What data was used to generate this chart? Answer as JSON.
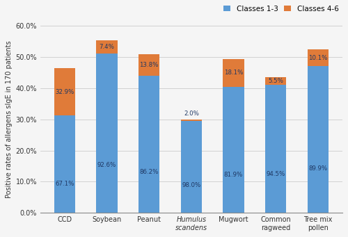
{
  "categories": [
    "CCD",
    "Soybean",
    "Peanut",
    "Humulus\nscandens",
    "Mugwort",
    "Common\nragweed",
    "Tree mix\npollen"
  ],
  "classes_1_3_pct": [
    31.2,
    51.2,
    43.9,
    29.4,
    40.4,
    41.1,
    47.1
  ],
  "classes_4_6_pct": [
    15.3,
    4.1,
    7.1,
    0.6,
    9.0,
    2.4,
    5.3
  ],
  "labels_1_3": [
    "67.1%",
    "92.6%",
    "86.2%",
    "98.0%",
    "81.9%",
    "94.5%",
    "89.9%"
  ],
  "labels_4_6": [
    "32.9%",
    "7.4%",
    "13.8%",
    "2.0%",
    "18.1%",
    "5.5%",
    "10.1%"
  ],
  "color_1_3": "#5B9BD5",
  "color_4_6": "#E07B39",
  "ylabel": "Positive rates of allergens sIgE in 170 patients",
  "ylim_max": 60.0,
  "ytick_vals": [
    0,
    10,
    20,
    30,
    40,
    50,
    60
  ],
  "legend_labels": [
    "Classes 1-3",
    "Classes 4-6"
  ],
  "italic_index": 3,
  "label_color": "#1F3864",
  "bg_color": "#F5F5F5",
  "bar_width": 0.5
}
